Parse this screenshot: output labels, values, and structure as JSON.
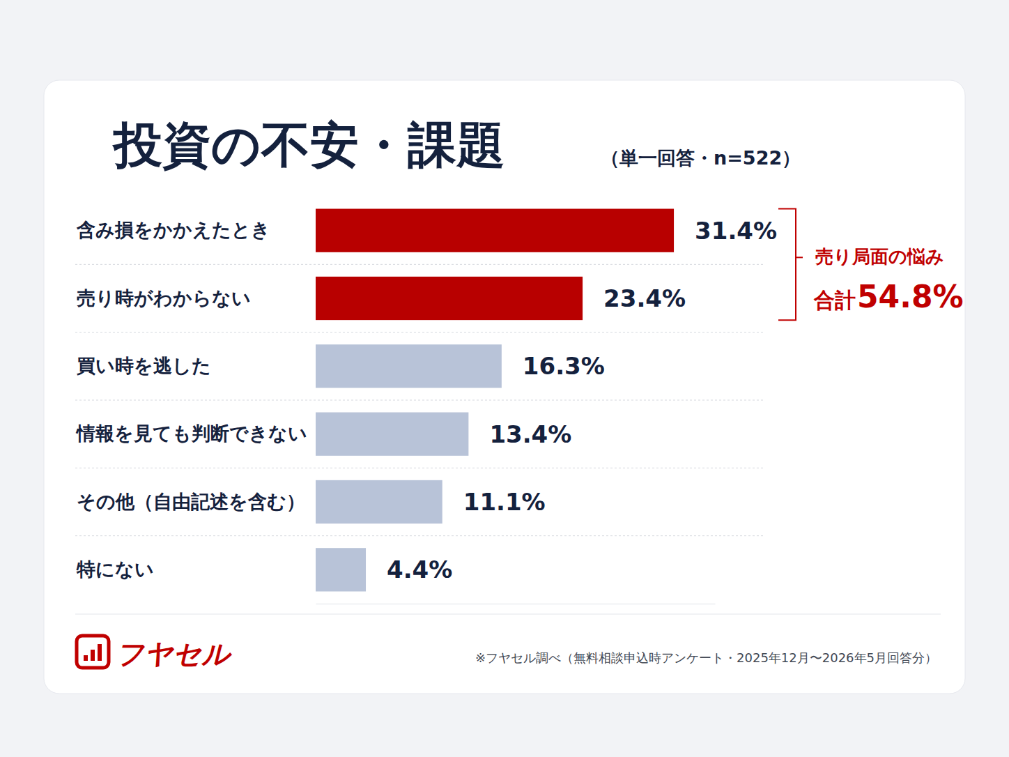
{
  "chart_data": {
    "type": "bar",
    "orientation": "horizontal",
    "title": "投資の不安・課題",
    "subtitle": "（単一回答・n=522）",
    "categories": [
      "含み損をかかえたとき",
      "売り時がわからない",
      "買い時を逃した",
      "情報を見ても判断できない",
      "その他（自由記述を含む）",
      "特にない"
    ],
    "values": [
      31.4,
      23.4,
      16.3,
      13.4,
      11.1,
      4.4
    ],
    "value_labels": [
      "31.4%",
      "23.4%",
      "16.3%",
      "13.4%",
      "11.1%",
      "4.4%"
    ],
    "colors": [
      "#b80000",
      "#b80000",
      "#b8c3d8",
      "#b8c3d8",
      "#b8c3d8",
      "#b8c3d8"
    ],
    "xlim": [
      0,
      35
    ],
    "xticks": [],
    "tick_labels": "y",
    "data_labels": true,
    "grid": false,
    "annotations": [
      "売り局面の悩み",
      "合計",
      "54.8%"
    ],
    "brand": "フヤセル",
    "source": "※フヤセル調べ（無料相談申込時アンケート・2025年12月〜2026年5月回答分）"
  }
}
